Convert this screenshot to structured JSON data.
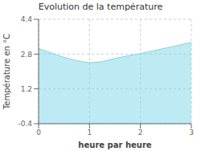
{
  "chart_data": {
    "type": "area",
    "title": "Evolution de la température",
    "xlabel": "heure par heure",
    "ylabel": "Température en °C",
    "x": [
      0,
      0.25,
      0.5,
      0.75,
      1.0,
      1.25,
      1.5,
      1.75,
      2.0,
      2.25,
      2.5,
      2.75,
      3.0
    ],
    "values": [
      3.05,
      2.85,
      2.65,
      2.5,
      2.4,
      2.45,
      2.6,
      2.72,
      2.82,
      2.95,
      3.08,
      3.2,
      3.35
    ],
    "color": "#7dd6e8",
    "xlim": [
      0,
      3
    ],
    "ylim": [
      -0.4,
      4.4
    ],
    "xticks": [
      0,
      1,
      2,
      3
    ],
    "yticks": [
      -0.4,
      1.2,
      2.8,
      4.4
    ],
    "grid": true
  }
}
